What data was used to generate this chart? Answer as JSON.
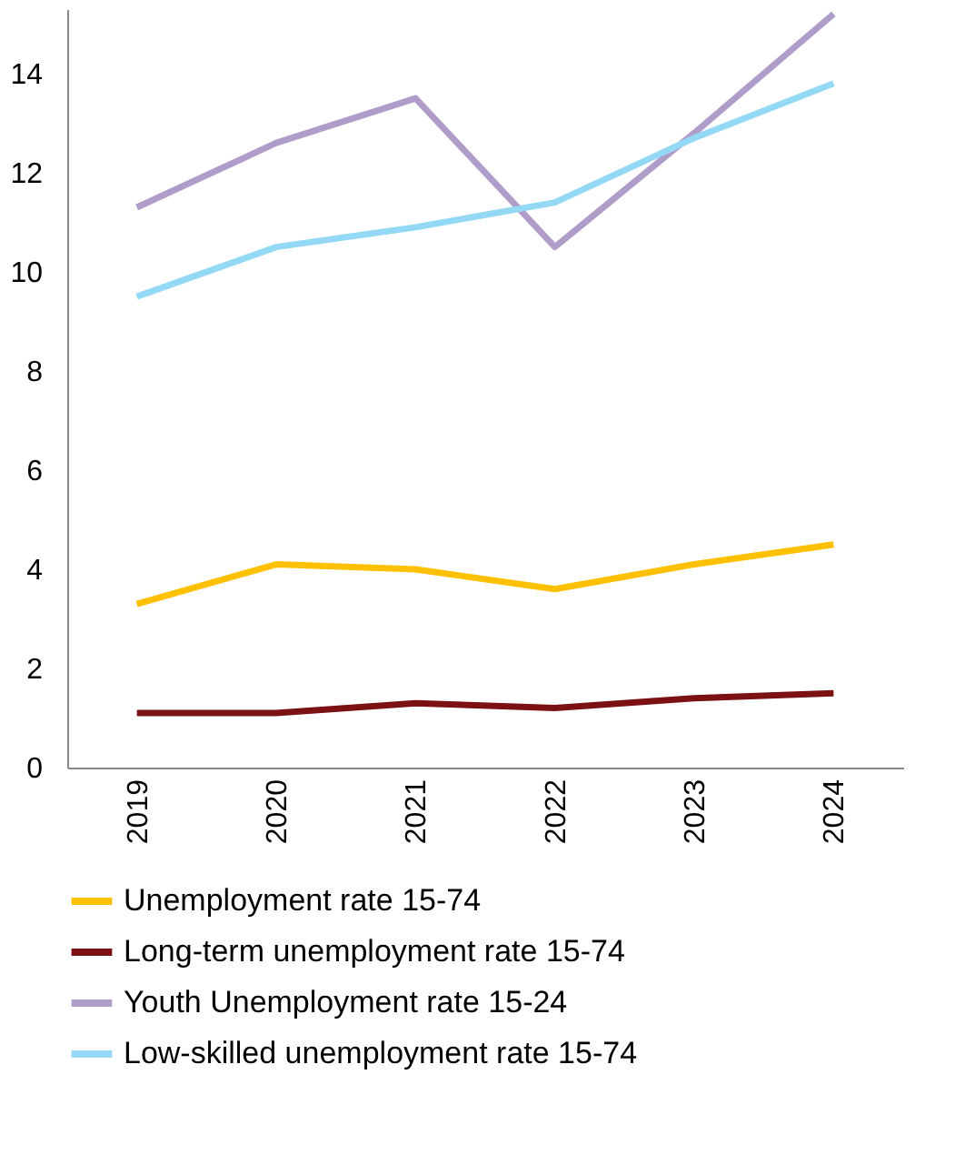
{
  "chart_data": {
    "type": "line",
    "categories": [
      "2019",
      "2020",
      "2021",
      "2022",
      "2023",
      "2024"
    ],
    "series": [
      {
        "name": "Unemployment rate 15-74",
        "color": "#ffc000",
        "values": [
          3.3,
          4.1,
          4.0,
          3.6,
          4.1,
          4.5
        ]
      },
      {
        "name": "Long-term unemployment rate 15-74",
        "color": "#7b1113",
        "values": [
          1.1,
          1.1,
          1.3,
          1.2,
          1.4,
          1.5
        ]
      },
      {
        "name": "Youth Unemployment rate 15-24",
        "color": "#b09cc8",
        "values": [
          11.3,
          12.6,
          13.5,
          10.5,
          12.8,
          15.2
        ]
      },
      {
        "name": "Low-skilled unemployment rate 15-74",
        "color": "#93d8f5",
        "values": [
          9.5,
          10.5,
          10.9,
          11.4,
          12.7,
          13.8
        ]
      }
    ],
    "ylim": [
      0,
      15.3
    ],
    "yticks": [
      0,
      2,
      4,
      6,
      8,
      10,
      12,
      14
    ],
    "grid": false,
    "legend": "bottom",
    "marker": "none",
    "line_style": "solid"
  }
}
